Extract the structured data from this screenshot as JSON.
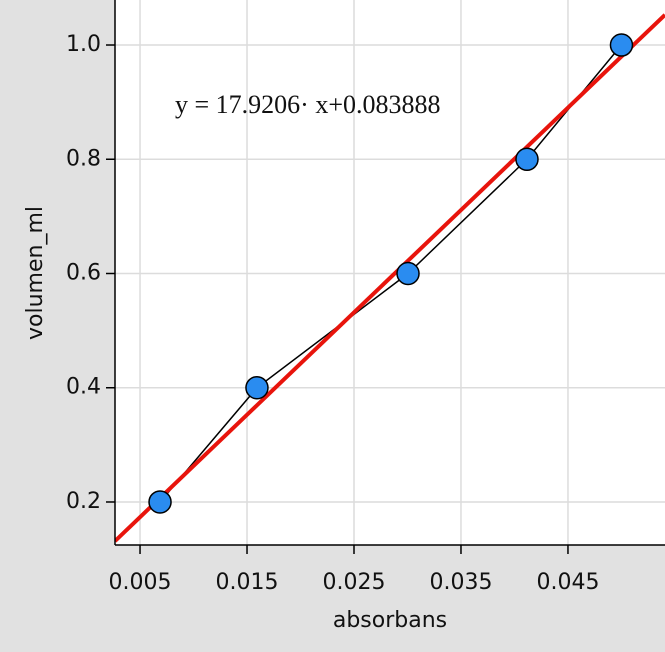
{
  "chart_data": {
    "type": "scatter",
    "x_label": "absorbans",
    "y_label": "volumen_ml",
    "series": [
      {
        "name": "volumen_ml",
        "color": "#2a8cf0",
        "line_color": "#000000",
        "x": [
          0.00687,
          0.01593,
          0.03005,
          0.04117,
          0.05
        ],
        "values": [
          0.2,
          0.4,
          0.6,
          0.8,
          1.0
        ]
      }
    ],
    "fit": {
      "equation": "y = 17.9206· x+0.083888",
      "slope": 17.9206,
      "intercept": 0.083888,
      "color": "#e8140c"
    },
    "xlim": [
      0.00266,
      0.05407
    ],
    "ylim": [
      0.1247,
      1.0788
    ],
    "xticks": [
      0.005,
      0.015,
      0.025,
      0.035,
      0.045
    ],
    "yticks": [
      {
        "value": 0.2,
        "label": "0.2"
      },
      {
        "value": 0.4,
        "label": "0.4"
      },
      {
        "value": 0.6,
        "label": "0.6"
      },
      {
        "value": 0.8,
        "label": "0.8"
      },
      {
        "value": 1.0,
        "label": "1.0"
      }
    ],
    "grid": true
  }
}
